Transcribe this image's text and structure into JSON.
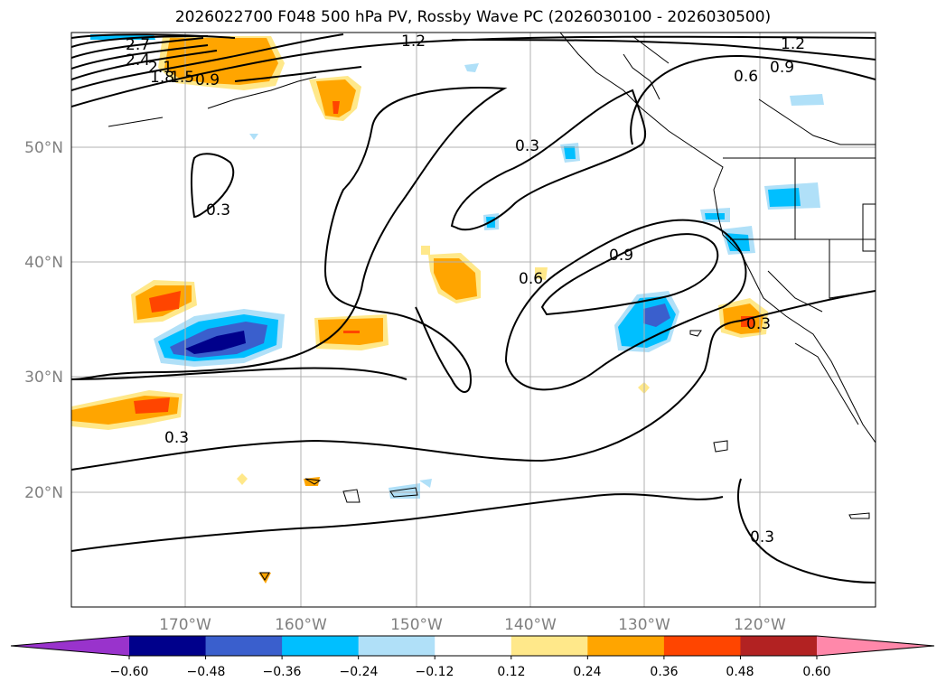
{
  "title": "2026022700 F048 500 hPa PV, Rossby Wave PC (2026030100 - 2026030500)",
  "map": {
    "lon_labels": [
      "170°W",
      "160°W",
      "150°W",
      "140°W",
      "130°W",
      "120°W"
    ],
    "lat_labels": [
      "50°N",
      "40°N",
      "30°N",
      "20°N"
    ],
    "contour_labels": [
      "2.7",
      "2.4",
      "2.1",
      "1.8",
      "1.5",
      "0.9",
      "1.2",
      "1.2",
      "0.9",
      "0.6",
      "0.3",
      "0.3",
      "0.6",
      "0.9",
      "0.3",
      "0.3",
      "0.3"
    ]
  },
  "colorbar": {
    "ticks": [
      "−0.60",
      "−0.48",
      "−0.36",
      "−0.24",
      "−0.12",
      "0.12",
      "0.24",
      "0.36",
      "0.48",
      "0.60"
    ],
    "colors": [
      "#9933cc",
      "#00008b",
      "#3a5fcd",
      "#00bfff",
      "#b0e0f8",
      "#ffffff",
      "#ffe88a",
      "#ffa500",
      "#ff4500",
      "#b22222",
      "#ff88aa"
    ]
  }
}
